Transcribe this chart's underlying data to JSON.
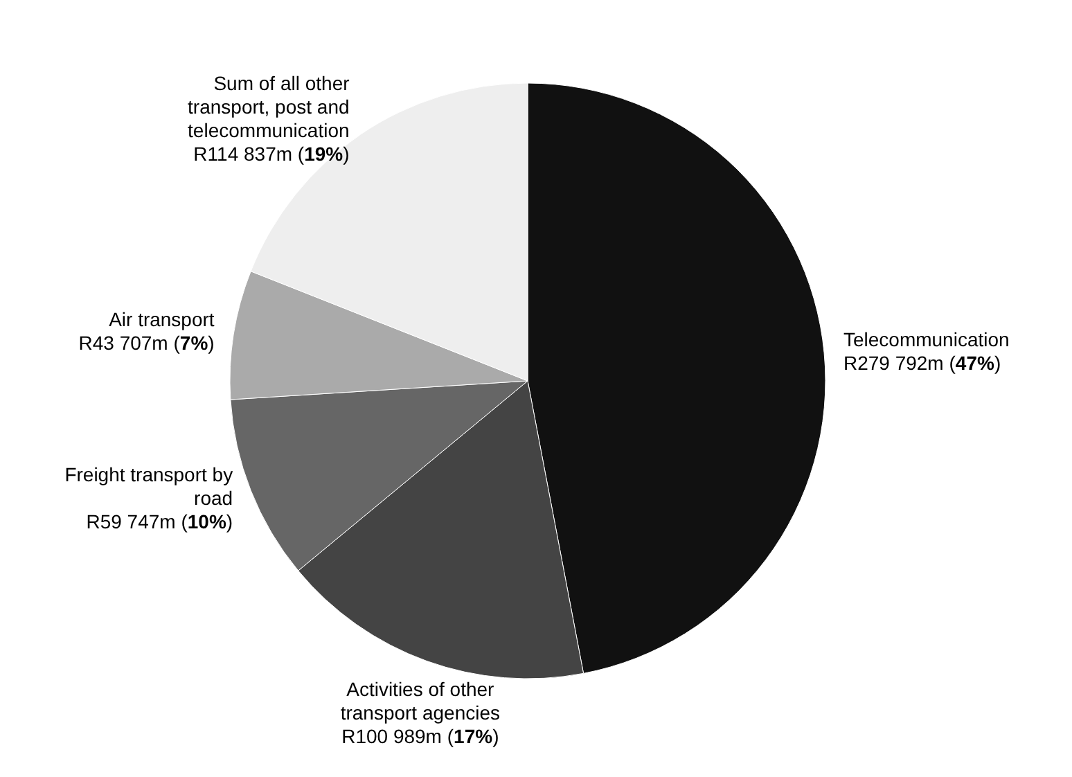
{
  "chart_data": {
    "type": "pie",
    "categories": [
      "Telecommunication",
      "Activities of other transport agencies",
      "Freight transport by road",
      "Air transport",
      "Sum of all other transport, post and telecommunication"
    ],
    "values": [
      47,
      17,
      10,
      7,
      19
    ],
    "value_labels": [
      "R279 792m (47%)",
      "R100 989m (17%)",
      "R59 747m (10%)",
      "R43 707m (7%)",
      "R114 837m (19%)"
    ],
    "colors": [
      "#111111",
      "#444444",
      "#666666",
      "#aaaaaa",
      "#eeeeee"
    ],
    "legend": false
  }
}
